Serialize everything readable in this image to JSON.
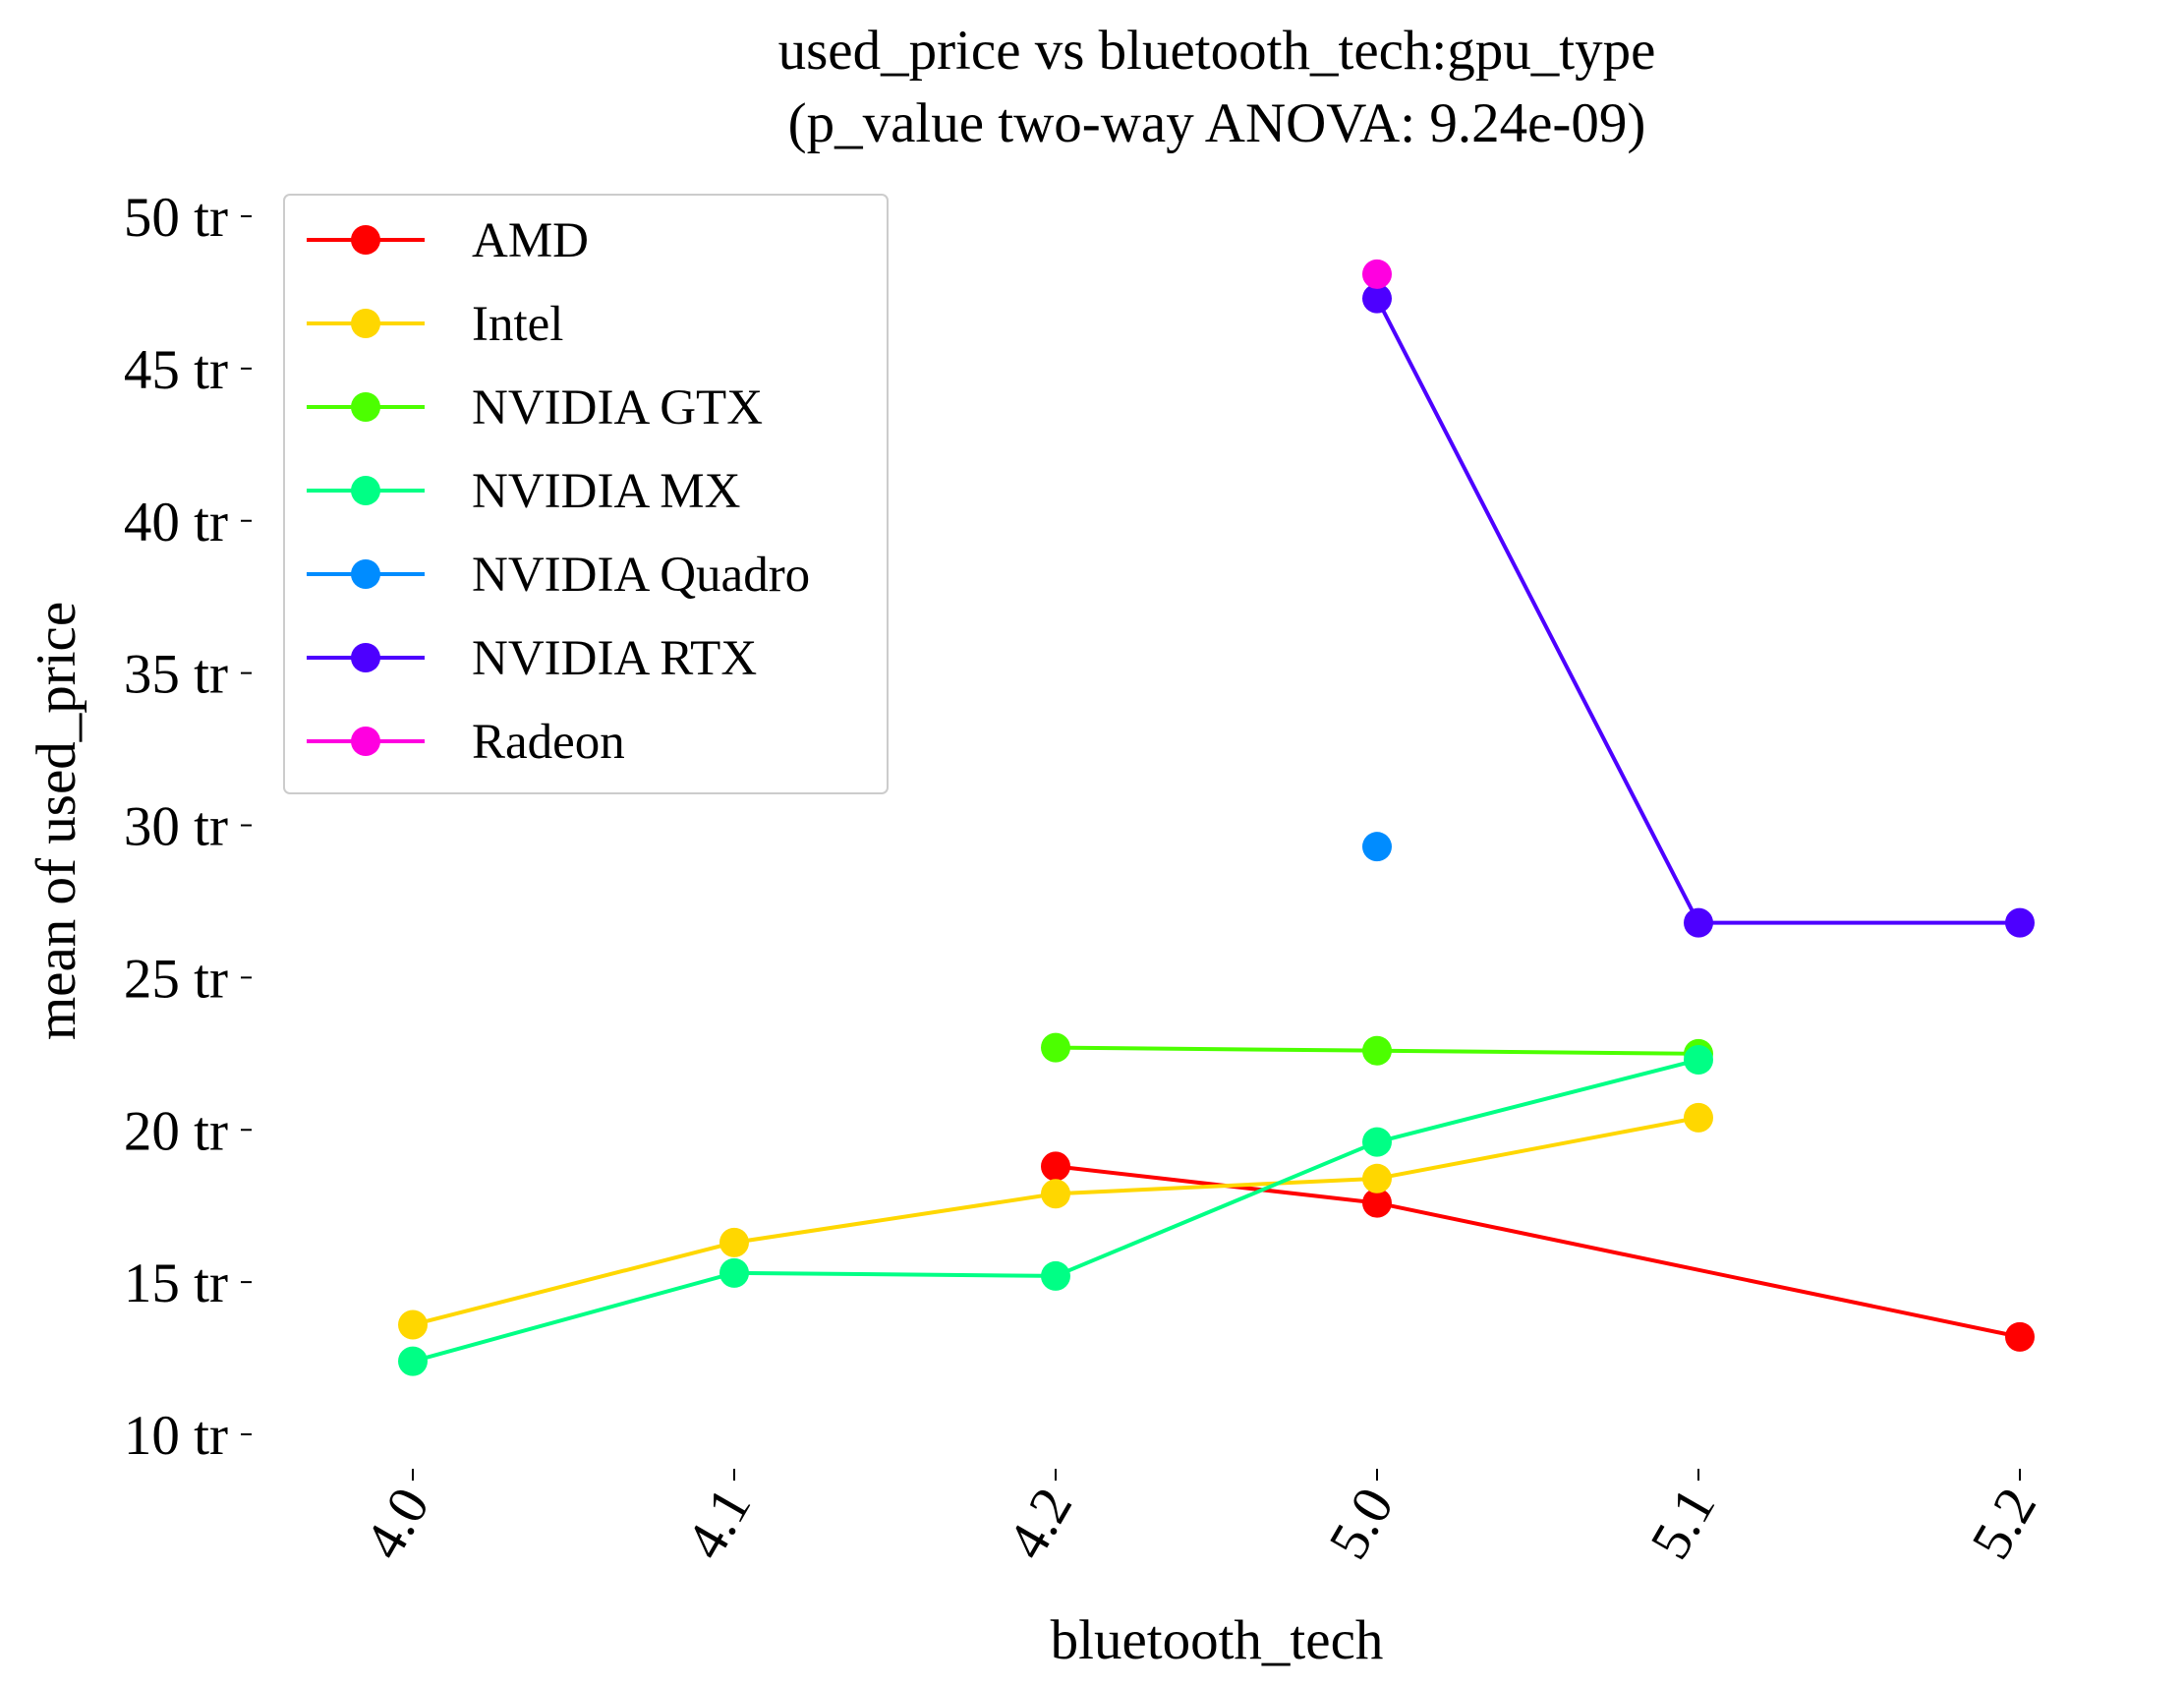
{
  "chart_data": {
    "type": "line",
    "title": "used_price vs bluetooth_tech:gpu_type",
    "subtitle": "(p_value two-way ANOVA: 9.24e-09)",
    "xlabel": "bluetooth_tech",
    "ylabel": "mean of used_price",
    "categories": [
      "4.0",
      "4.1",
      "4.2",
      "5.0",
      "5.1",
      "5.2"
    ],
    "ylim": [
      8.5,
      50.5
    ],
    "yticks": [
      10,
      15,
      20,
      25,
      30,
      35,
      40,
      45,
      50
    ],
    "ytick_labels": [
      "10 tr",
      "15 tr",
      "20 tr",
      "25 tr",
      "30 tr",
      "35 tr",
      "40 tr",
      "45 tr",
      "50 tr"
    ],
    "grid": false,
    "legend_position": "top-left",
    "series": [
      {
        "name": "AMD",
        "color": "#ff0000",
        "values": [
          null,
          null,
          18.8,
          17.6,
          null,
          13.2
        ]
      },
      {
        "name": "Intel",
        "color": "#ffd700",
        "values": [
          13.6,
          16.3,
          17.9,
          18.4,
          20.4,
          null
        ]
      },
      {
        "name": "NVIDIA GTX",
        "color": "#4cff00",
        "values": [
          null,
          null,
          22.7,
          22.6,
          22.5,
          null
        ]
      },
      {
        "name": "NVIDIA MX",
        "color": "#00ff85",
        "values": [
          12.4,
          15.3,
          15.2,
          19.6,
          22.3,
          null
        ]
      },
      {
        "name": "NVIDIA Quadro",
        "color": "#008cff",
        "values": [
          null,
          null,
          null,
          29.3,
          null,
          null
        ]
      },
      {
        "name": "NVIDIA RTX",
        "color": "#4d00ff",
        "values": [
          null,
          null,
          null,
          47.3,
          26.8,
          26.8
        ]
      },
      {
        "name": "Radeon",
        "color": "#ff00e0",
        "values": [
          null,
          null,
          null,
          48.1,
          null,
          null
        ]
      }
    ]
  }
}
